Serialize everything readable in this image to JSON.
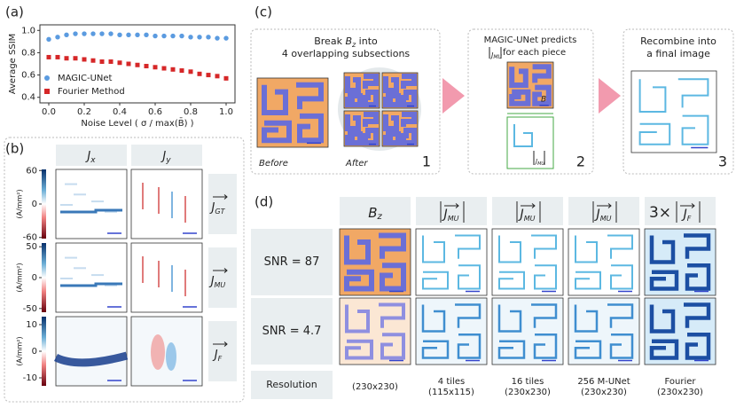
{
  "panel_labels": [
    "(a)",
    "(b)",
    "(c)",
    "(d)"
  ],
  "chart_data": {
    "type": "scatter",
    "ylabel": "Average SSIM",
    "xlabel": "Noise Level ( σ / max(B̄) )",
    "xlim": [
      -0.05,
      1.05
    ],
    "ylim": [
      0.35,
      1.05
    ],
    "xticks": [
      {
        "value": 0,
        "label": "0.0"
      },
      0.2,
      0.4,
      0.6,
      0.8,
      {
        "value": 1,
        "label": "1.0"
      }
    ],
    "yticks": [
      0.4,
      0.6,
      0.8,
      {
        "value": 1,
        "label": "1.0"
      }
    ],
    "x": [
      0,
      0.05,
      0.1,
      0.15,
      0.2,
      0.25,
      0.3,
      0.35,
      0.4,
      0.45,
      0.5,
      0.55,
      0.6,
      0.65,
      0.7,
      0.75,
      0.8,
      0.85,
      0.9,
      0.95,
      1.0
    ],
    "series": [
      {
        "name": "MAGIC-UNet",
        "color": "#5b9be0",
        "marker": "circle",
        "values": [
          0.92,
          0.94,
          0.96,
          0.97,
          0.97,
          0.97,
          0.97,
          0.97,
          0.96,
          0.96,
          0.96,
          0.96,
          0.95,
          0.95,
          0.95,
          0.95,
          0.94,
          0.94,
          0.94,
          0.93,
          0.93
        ]
      },
      {
        "name": "Fourier Method",
        "color": "#d62728",
        "marker": "square",
        "values": [
          0.76,
          0.76,
          0.75,
          0.75,
          0.74,
          0.73,
          0.72,
          0.72,
          0.71,
          0.7,
          0.69,
          0.68,
          0.67,
          0.66,
          0.65,
          0.64,
          0.63,
          0.61,
          0.6,
          0.59,
          0.57
        ]
      }
    ],
    "legend": "lower-left"
  },
  "panel_b": {
    "columns": [
      {
        "main": "J",
        "sub": "x"
      },
      {
        "main": "J",
        "sub": "y"
      }
    ],
    "rows": [
      {
        "main": "J",
        "sub": "GT",
        "unit": "(A/mm²)",
        "cbar_lim": [
          -62,
          62
        ],
        "cbar_ticks": [
          60,
          0,
          -60
        ]
      },
      {
        "main": "J",
        "sub": "MU",
        "unit": "(A/mm²)",
        "cbar_lim": [
          -56,
          56
        ],
        "cbar_ticks": [
          50,
          0,
          -50
        ]
      },
      {
        "main": "J",
        "sub": "F",
        "unit": "(A/mm²)",
        "cbar_lim": [
          -13,
          13
        ],
        "cbar_ticks": [
          10,
          0,
          -10
        ]
      }
    ]
  },
  "panel_c": {
    "step1": {
      "pre": "Break ",
      "var": "B",
      "sub": "z",
      "post": " into",
      "line2": "4 overlapping subsections",
      "before": "Before",
      "after": "After",
      "number": "1"
    },
    "step2": {
      "line1": "MAGIC-UNet predicts",
      "var": "J",
      "sub": "MU",
      "post": " for each piece",
      "number": "2"
    },
    "step3": {
      "line1": "Recombine into",
      "line2": "a final image",
      "number": "3"
    }
  },
  "panel_d": {
    "headers": [
      {
        "main": "B",
        "sub": "z"
      },
      {
        "main": "J",
        "sub": "MU"
      },
      {
        "main": "J",
        "sub": "MU"
      },
      {
        "main": "J",
        "sub": "MU"
      },
      {
        "pre": "3×",
        "main": "J",
        "sub": "F"
      }
    ],
    "rows": [
      "SNR = 87",
      "SNR = 4.7",
      "Resolution"
    ],
    "resolution": [
      [
        "(230x230)"
      ],
      [
        "4 tiles",
        "(115x115)"
      ],
      [
        "16 tiles",
        "(230x230)"
      ],
      [
        "256 M-UNet",
        "(230x230)"
      ],
      [
        "Fourier",
        "(230x230)"
      ]
    ]
  }
}
